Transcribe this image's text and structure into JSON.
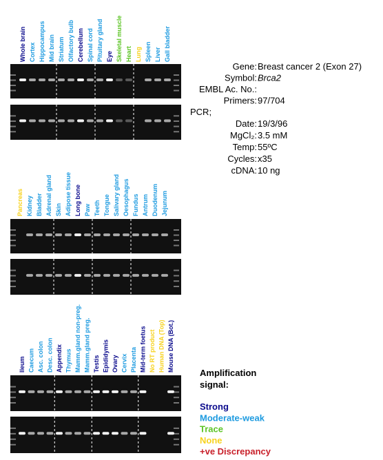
{
  "classes": {
    "strong": {
      "name": "Strong",
      "color": "#0a0a8c"
    },
    "moderate": {
      "name": "Moderate-weak",
      "color": "#1e9be0"
    },
    "trace": {
      "name": "Trace",
      "color": "#5cc425"
    },
    "none": {
      "name": "None",
      "color": "#f7d21e"
    },
    "discrepancy": {
      "name": "+ve Discrepancy",
      "color": "#c8202a"
    }
  },
  "panels": [
    {
      "lanes": [
        {
          "label": "Whole brain",
          "class": "strong"
        },
        {
          "label": "Cortex",
          "class": "moderate"
        },
        {
          "label": "Hippocampus",
          "class": "moderate"
        },
        {
          "label": "Mid brain",
          "class": "moderate"
        },
        {
          "label": "Striatum",
          "class": "moderate"
        },
        {
          "label": "Olfactory bulb",
          "class": "moderate"
        },
        {
          "label": "Cerebellum",
          "class": "strong"
        },
        {
          "label": "Spinal cord",
          "class": "moderate"
        },
        {
          "label": "Pituitary gland",
          "class": "moderate"
        },
        {
          "label": "Eye",
          "class": "strong"
        },
        {
          "label": "Skeletal muscle",
          "class": "trace"
        },
        {
          "label": "Heart",
          "class": "trace"
        },
        {
          "label": "Lung",
          "class": "none"
        },
        {
          "label": "Spleen",
          "class": "moderate"
        },
        {
          "label": "Liver",
          "class": "moderate"
        },
        {
          "label": "Gall bladder",
          "class": "moderate"
        }
      ]
    },
    {
      "lanes": [
        {
          "label": "Pancreas",
          "class": "none"
        },
        {
          "label": "Kidney",
          "class": "moderate"
        },
        {
          "label": "Bladder",
          "class": "moderate"
        },
        {
          "label": "Adrenal gland",
          "class": "moderate"
        },
        {
          "label": "Skin",
          "class": "moderate"
        },
        {
          "label": "Adipose tissue",
          "class": "moderate"
        },
        {
          "label": "Long bone",
          "class": "strong"
        },
        {
          "label": "Paw",
          "class": "moderate"
        },
        {
          "label": "Teeth",
          "class": "moderate"
        },
        {
          "label": "Tongue",
          "class": "moderate"
        },
        {
          "label": "Salivary gland",
          "class": "moderate"
        },
        {
          "label": "Oesophagus",
          "class": "moderate"
        },
        {
          "label": "Fundus",
          "class": "moderate"
        },
        {
          "label": "Antrum",
          "class": "moderate"
        },
        {
          "label": "Duodenum",
          "class": "moderate"
        },
        {
          "label": "Jejunum",
          "class": "moderate"
        }
      ]
    },
    {
      "lanes": [
        {
          "label": "Ileum",
          "class": "strong"
        },
        {
          "label": "Caecum",
          "class": "moderate"
        },
        {
          "label": "Asc. colon",
          "class": "moderate"
        },
        {
          "label": "Desc. colon",
          "class": "moderate"
        },
        {
          "label": "Appendix",
          "class": "strong"
        },
        {
          "label": "Thymus",
          "class": "moderate"
        },
        {
          "label": "Mamm.gland non-preg.",
          "class": "moderate"
        },
        {
          "label": "Mamm.gland preg.",
          "class": "moderate"
        },
        {
          "label": "Testis",
          "class": "strong"
        },
        {
          "label": "Epididymis",
          "class": "strong"
        },
        {
          "label": "Ovary",
          "class": "strong"
        },
        {
          "label": "Cervix",
          "class": "moderate"
        },
        {
          "label": "Placenta",
          "class": "moderate"
        },
        {
          "label": "Mid-term foetus",
          "class": "strong"
        },
        {
          "label": "No RT product",
          "class": "none"
        },
        {
          "label": "Human DNA (Top)",
          "class": "none"
        },
        {
          "label": "Mouse DNA (Bot.)",
          "class": "strong"
        }
      ]
    }
  ],
  "info": {
    "rows": [
      {
        "label": "Gene:",
        "value": "Breast cancer 2 (Exon 27)"
      },
      {
        "label": "Symbol:",
        "value": "Brca2"
      },
      {
        "label": "EMBL Ac. No.:"
      },
      {
        "label": "Primers:",
        "value": "97/704"
      }
    ],
    "pcr": "PCR;",
    "pcr_rows": [
      {
        "label": "Date:",
        "value": "19/3/96"
      },
      {
        "label": "MgCl₂:",
        "value": "3.5 mM"
      },
      {
        "label": "Temp:",
        "value": "55ºC"
      },
      {
        "label": "Cycles:",
        "value": "x35"
      },
      {
        "label": "cDNA:",
        "value": "10 ng"
      }
    ]
  },
  "legend": {
    "title": "Amplification",
    "title2": "signal:",
    "order": [
      "strong",
      "moderate",
      "trace",
      "none",
      "discrepancy"
    ]
  }
}
